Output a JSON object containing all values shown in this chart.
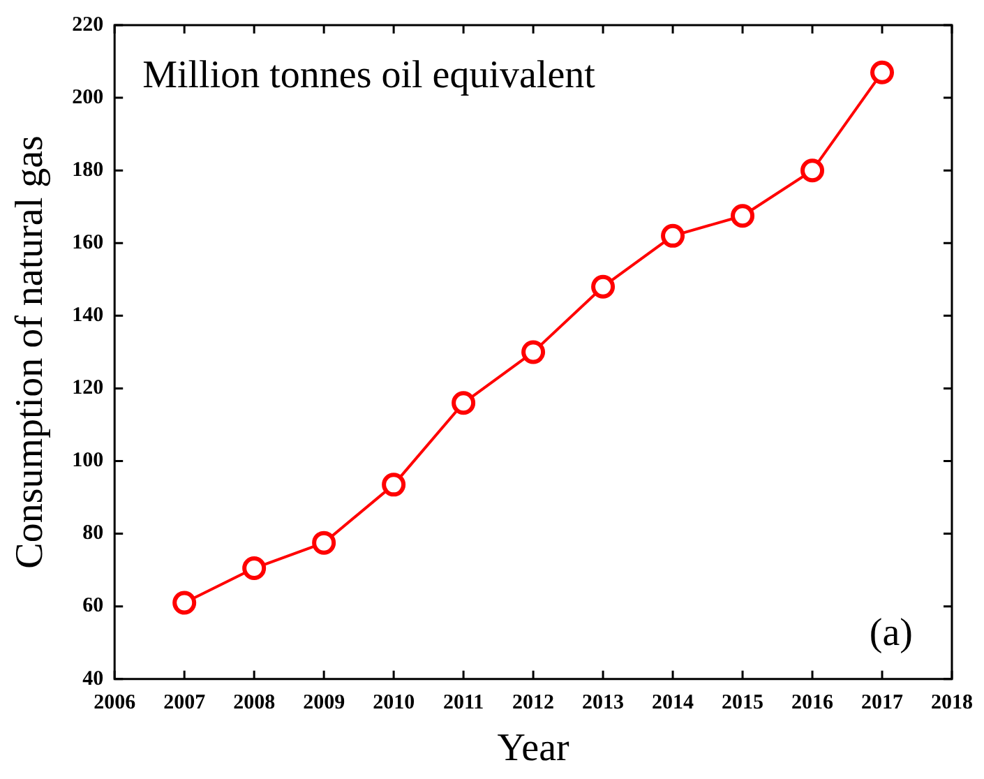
{
  "chart_data": {
    "type": "line",
    "xlabel": "Year",
    "ylabel": "Consumption of natural gas",
    "annotations": [
      "Million tonnes oil equivalent",
      "(a)"
    ],
    "x": [
      2007,
      2008,
      2009,
      2010,
      2011,
      2012,
      2013,
      2014,
      2015,
      2016,
      2017
    ],
    "series": [
      {
        "color": "#ff0000",
        "values": [
          61,
          70.5,
          77.5,
          93.5,
          116,
          130,
          148,
          162,
          167.5,
          180,
          207
        ]
      }
    ],
    "xlim": [
      2006,
      2018
    ],
    "xticks": [
      2006,
      2007,
      2008,
      2009,
      2010,
      2011,
      2012,
      2013,
      2014,
      2015,
      2016,
      2017,
      2018
    ],
    "ylim": [
      40,
      220
    ],
    "yticks": [
      40,
      60,
      80,
      100,
      120,
      140,
      160,
      180,
      200,
      220
    ],
    "grid": false,
    "legend": false,
    "marker": "circle",
    "line_style": "solid"
  }
}
